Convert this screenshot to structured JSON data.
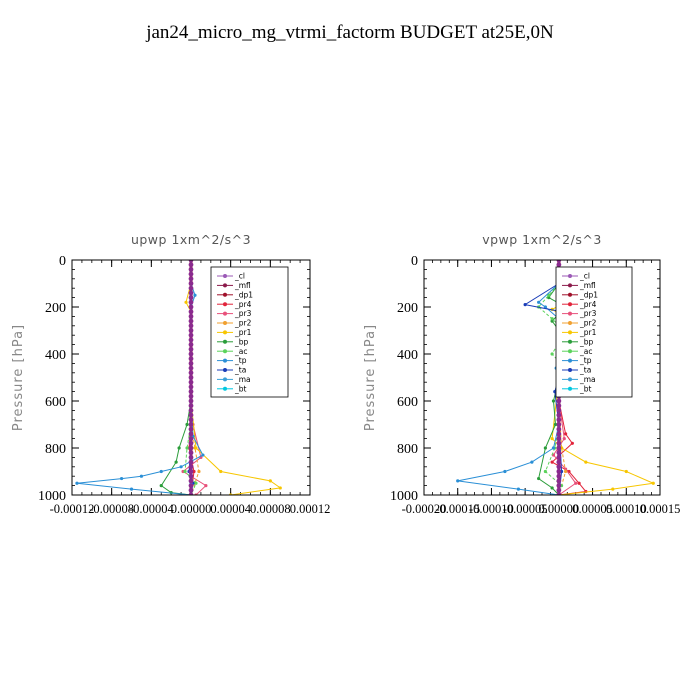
{
  "figure_title": "jan24_micro_mg_vtrmi_factorm  BUDGET at25E,0N",
  "chart_data": [
    {
      "type": "line",
      "title": "upwp   1xm^2/s^3",
      "ylabel": "Pressure [hPa]",
      "ylim": [
        0,
        1000
      ],
      "yticks": [
        "0",
        "200",
        "400",
        "600",
        "800",
        "1000"
      ],
      "xlim": [
        -0.00012,
        0.00012
      ],
      "xticks": [
        "-0.00012",
        "-0.00008",
        "-0.00004",
        "0.00000",
        "0.00004",
        "0.00008",
        "0.00012"
      ],
      "legend": [
        "_cl",
        "_mfl",
        "_dp1",
        "_pr4",
        "_pr3",
        "_pr2",
        "_pr1",
        "_bp",
        "_ac",
        "_tp",
        "_ta",
        "_ma",
        "_bt"
      ],
      "legend_position": "top-right",
      "series": [
        {
          "name": "_cl",
          "color": "#9b59b6",
          "x": [
            0,
            0,
            0,
            0,
            0,
            0,
            0,
            0,
            0,
            0,
            0
          ],
          "y": [
            0,
            100,
            200,
            300,
            400,
            500,
            600,
            700,
            800,
            900,
            1000
          ]
        },
        {
          "name": "_mfl",
          "color": "#8b1a4a",
          "x": [
            0,
            0,
            0,
            0,
            0,
            0,
            0,
            0,
            0,
            0,
            0
          ],
          "y": [
            0,
            100,
            200,
            300,
            400,
            500,
            600,
            700,
            800,
            900,
            1000
          ]
        },
        {
          "name": "_dp1",
          "color": "#a0102a",
          "x": [
            0,
            0,
            0,
            0,
            0,
            0,
            0,
            0,
            0,
            0,
            0
          ],
          "y": [
            0,
            100,
            200,
            300,
            400,
            500,
            600,
            700,
            800,
            900,
            1000
          ]
        },
        {
          "name": "_pr4",
          "color": "#e2233a",
          "x": [
            0,
            0,
            0,
            0,
            0,
            0,
            0,
            0,
            -2e-06,
            3e-06,
            0
          ],
          "y": [
            0,
            100,
            200,
            300,
            400,
            500,
            600,
            700,
            800,
            900,
            1000
          ]
        },
        {
          "name": "_pr3",
          "color": "#e8507a",
          "x": [
            0,
            0,
            0,
            0,
            0,
            0,
            0,
            2e-06,
            1e-05,
            -8e-06,
            1.5e-05,
            5e-06
          ],
          "y": [
            0,
            100,
            200,
            300,
            400,
            500,
            600,
            700,
            840,
            900,
            960,
            1000
          ]
        },
        {
          "name": "_pr2",
          "color": "#f0a030",
          "x": [
            0,
            0,
            0,
            0,
            0,
            0,
            0,
            0,
            4e-06,
            8e-06,
            0
          ],
          "y": [
            0,
            100,
            200,
            300,
            400,
            500,
            600,
            700,
            800,
            900,
            1000
          ]
        },
        {
          "name": "_pr1",
          "color": "#f7c600",
          "x": [
            0,
            0,
            -5e-06,
            0,
            0,
            0,
            0,
            0,
            5e-06,
            3e-05,
            8e-05,
            9e-05,
            4e-05
          ],
          "y": [
            0,
            100,
            180,
            220,
            300,
            400,
            500,
            600,
            800,
            900,
            940,
            970,
            1000
          ]
        },
        {
          "name": "_bp",
          "color": "#2a9d3a",
          "x": [
            0,
            0,
            0,
            0,
            0,
            0,
            0,
            -4e-06,
            -1.2e-05,
            -1.5e-05,
            -3e-05,
            -2e-05,
            0
          ],
          "y": [
            0,
            100,
            200,
            300,
            400,
            500,
            600,
            700,
            800,
            860,
            960,
            990,
            1000
          ]
        },
        {
          "name": "_ac",
          "color": "#5bd35b",
          "x": [
            0,
            0,
            0,
            0,
            0,
            0,
            0,
            0,
            -4e-06,
            -6e-06,
            5e-06,
            0
          ],
          "y": [
            0,
            100,
            200,
            300,
            400,
            500,
            600,
            700,
            800,
            900,
            950,
            1000
          ]
        },
        {
          "name": "_tp",
          "color": "#2a8fd6",
          "x": [
            0,
            0,
            4e-06,
            0,
            0,
            0,
            0,
            0,
            2e-06,
            1.2e-05,
            -1e-05,
            -3e-05,
            -5e-05,
            -7e-05,
            -0.000115,
            -6e-05,
            0
          ],
          "y": [
            0,
            100,
            150,
            200,
            300,
            400,
            500,
            600,
            750,
            830,
            880,
            900,
            920,
            930,
            950,
            975,
            1000
          ]
        },
        {
          "name": "_ta",
          "color": "#1a3db8",
          "x": [
            0,
            0,
            0,
            0,
            0,
            0,
            0,
            0,
            0,
            -2e-06,
            2e-06,
            0
          ],
          "y": [
            0,
            100,
            200,
            300,
            400,
            500,
            600,
            700,
            800,
            900,
            950,
            1000
          ]
        },
        {
          "name": "_ma",
          "color": "#3aa0d8",
          "x": [
            0,
            0,
            0,
            0,
            0,
            0,
            0,
            0,
            0,
            0,
            0,
            0
          ],
          "y": [
            0,
            100,
            200,
            300,
            400,
            500,
            600,
            700,
            800,
            900,
            950,
            1000
          ]
        },
        {
          "name": "_bt",
          "color": "#00c8e0",
          "x": [
            0,
            0,
            0,
            0,
            0,
            0,
            0,
            0,
            0,
            0,
            0
          ],
          "y": [
            0,
            100,
            200,
            300,
            400,
            500,
            600,
            700,
            800,
            900,
            1000
          ]
        }
      ]
    },
    {
      "type": "line",
      "title": "vpwp   1xm^2/s^3",
      "ylabel": "Pressure [hPa]",
      "ylim": [
        0,
        1000
      ],
      "yticks": [
        "0",
        "200",
        "400",
        "600",
        "800",
        "1000"
      ],
      "xlim": [
        -0.0002,
        0.00015
      ],
      "xticks": [
        "-0.00020",
        "-0.00015",
        "-0.00010",
        "-0.00005",
        "0.00000",
        "0.00005",
        "0.00010",
        "0.00015"
      ],
      "legend": [
        "_cl",
        "_mfl",
        "_dp1",
        "_pr4",
        "_pr3",
        "_pr2",
        "_pr1",
        "_bp",
        "_ac",
        "_tp",
        "_ta",
        "_ma",
        "_bt"
      ],
      "legend_position": "top-right",
      "series": [
        {
          "name": "_cl",
          "color": "#9b59b6",
          "x": [
            0,
            0,
            0,
            0,
            0,
            0,
            0,
            0,
            0,
            0,
            0
          ],
          "y": [
            0,
            100,
            200,
            300,
            400,
            500,
            600,
            700,
            800,
            900,
            1000
          ]
        },
        {
          "name": "_mfl",
          "color": "#8b1a4a",
          "x": [
            0,
            0,
            0,
            0,
            0,
            0,
            0,
            0,
            0,
            0,
            0
          ],
          "y": [
            0,
            100,
            200,
            300,
            400,
            500,
            600,
            700,
            800,
            900,
            1000
          ]
        },
        {
          "name": "_dp1",
          "color": "#a0102a",
          "x": [
            0,
            0,
            0,
            0,
            0,
            0,
            0,
            0,
            0,
            0,
            0
          ],
          "y": [
            0,
            100,
            200,
            300,
            400,
            500,
            600,
            700,
            800,
            900,
            1000
          ]
        },
        {
          "name": "_pr4",
          "color": "#e2233a",
          "x": [
            0,
            0,
            0,
            0,
            0,
            0,
            0,
            1e-05,
            2e-05,
            -1e-05,
            1.5e-05,
            3e-05,
            4e-05,
            0
          ],
          "y": [
            0,
            100,
            200,
            300,
            400,
            500,
            600,
            740,
            780,
            860,
            900,
            950,
            985,
            1000
          ]
        },
        {
          "name": "_pr3",
          "color": "#e8507a",
          "x": [
            0,
            0,
            0,
            0,
            0,
            0,
            0,
            8e-06,
            -8e-06,
            1e-05,
            2.5e-05,
            0
          ],
          "y": [
            0,
            100,
            200,
            300,
            400,
            500,
            600,
            760,
            830,
            890,
            950,
            1000
          ]
        },
        {
          "name": "_pr2",
          "color": "#f0a030",
          "x": [
            0,
            0,
            4e-06,
            0,
            0,
            0,
            0,
            0,
            4e-06,
            1e-05,
            0
          ],
          "y": [
            0,
            100,
            180,
            230,
            300,
            400,
            500,
            600,
            800,
            900,
            1000
          ]
        },
        {
          "name": "_pr1",
          "color": "#f7c600",
          "x": [
            0,
            0,
            1e-05,
            -1e-05,
            8e-06,
            0,
            0,
            0,
            -1e-05,
            4e-06,
            4e-05,
            0.0001,
            0.00014,
            8e-05,
            0
          ],
          "y": [
            0,
            100,
            180,
            210,
            240,
            300,
            400,
            500,
            760,
            800,
            860,
            900,
            950,
            975,
            1000
          ]
        },
        {
          "name": "_bp",
          "color": "#2a9d3a",
          "x": [
            0,
            0,
            -1.5e-05,
            1e-05,
            -1e-05,
            8e-06,
            0,
            5e-06,
            0,
            -8e-06,
            -5e-06,
            -2e-05,
            -3e-05,
            -1e-05,
            0
          ],
          "y": [
            0,
            100,
            160,
            200,
            260,
            330,
            400,
            440,
            500,
            600,
            700,
            800,
            930,
            970,
            1000
          ]
        },
        {
          "name": "_ac",
          "color": "#5bd35b",
          "x": [
            0,
            0,
            -1.5e-05,
            -3e-05,
            -1e-05,
            8e-06,
            0,
            -1e-05,
            6e-06,
            0,
            0,
            -6e-06,
            -2e-05,
            4e-06,
            0
          ],
          "y": [
            0,
            100,
            150,
            200,
            250,
            300,
            350,
            400,
            450,
            500,
            700,
            800,
            900,
            960,
            1000
          ]
        },
        {
          "name": "_tp",
          "color": "#2a8fd6",
          "x": [
            0,
            0,
            -3e-05,
            -2e-05,
            0,
            0,
            -4e-06,
            0,
            0,
            -8e-06,
            -4e-05,
            -8e-05,
            -0.00015,
            -6e-05,
            0
          ],
          "y": [
            0,
            100,
            180,
            200,
            250,
            400,
            460,
            500,
            700,
            800,
            860,
            900,
            940,
            975,
            1000
          ]
        },
        {
          "name": "_ta",
          "color": "#1a3db8",
          "x": [
            0,
            0,
            -5e-05,
            4e-06,
            0,
            0,
            0,
            -6e-06,
            0,
            4e-06,
            0
          ],
          "y": [
            0,
            100,
            190,
            220,
            300,
            400,
            500,
            560,
            700,
            900,
            1000
          ]
        },
        {
          "name": "_ma",
          "color": "#3aa0d8",
          "x": [
            0,
            0,
            6e-06,
            0,
            0,
            0,
            0,
            0,
            0,
            0,
            0
          ],
          "y": [
            0,
            100,
            200,
            300,
            400,
            500,
            600,
            700,
            800,
            900,
            1000
          ]
        },
        {
          "name": "_bt",
          "color": "#00c8e0",
          "x": [
            0,
            0,
            0,
            0,
            0,
            0,
            0,
            0,
            0,
            0,
            0
          ],
          "y": [
            0,
            100,
            200,
            300,
            400,
            500,
            600,
            700,
            800,
            900,
            1000
          ]
        }
      ]
    }
  ]
}
